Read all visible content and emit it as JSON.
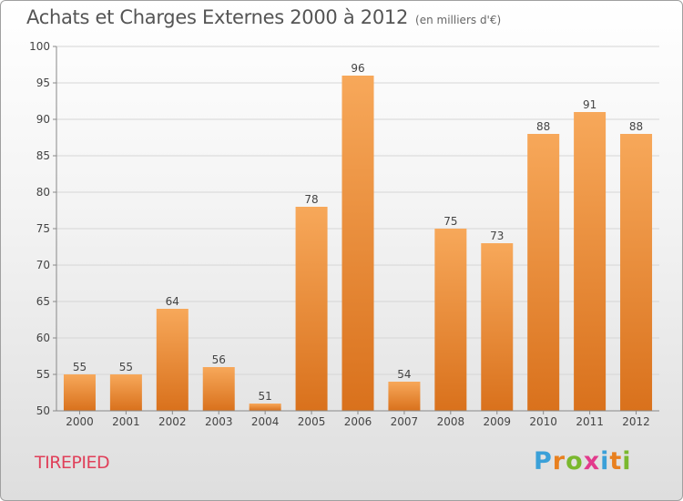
{
  "chart_data": {
    "type": "bar",
    "title": "Achats et Charges Externes 2000 à 2012",
    "subtitle": "(en milliers d'€)",
    "categories": [
      "2000",
      "2001",
      "2002",
      "2003",
      "2004",
      "2005",
      "2006",
      "2007",
      "2008",
      "2009",
      "2010",
      "2011",
      "2012"
    ],
    "values": [
      55,
      55,
      64,
      56,
      51,
      78,
      96,
      54,
      75,
      73,
      88,
      91,
      88
    ],
    "ylim": [
      50,
      100
    ],
    "yticks": [
      50,
      55,
      60,
      65,
      70,
      75,
      80,
      85,
      90,
      95,
      100
    ],
    "grid": true,
    "xlabel": "",
    "ylabel": ""
  },
  "commune": "TIREPIED",
  "logo": {
    "letters": [
      "P",
      "r",
      "o",
      "x",
      "i",
      "t",
      "i"
    ],
    "colors": [
      "#3aa0d8",
      "#e8801f",
      "#7ab82e",
      "#e23a8c",
      "#3aa0d8",
      "#e8801f",
      "#7ab82e"
    ]
  },
  "colors": {
    "bar_light": "#f7a85a",
    "bar_dark": "#d9711c",
    "grid": "#d6d6d6",
    "axis": "#888888"
  }
}
